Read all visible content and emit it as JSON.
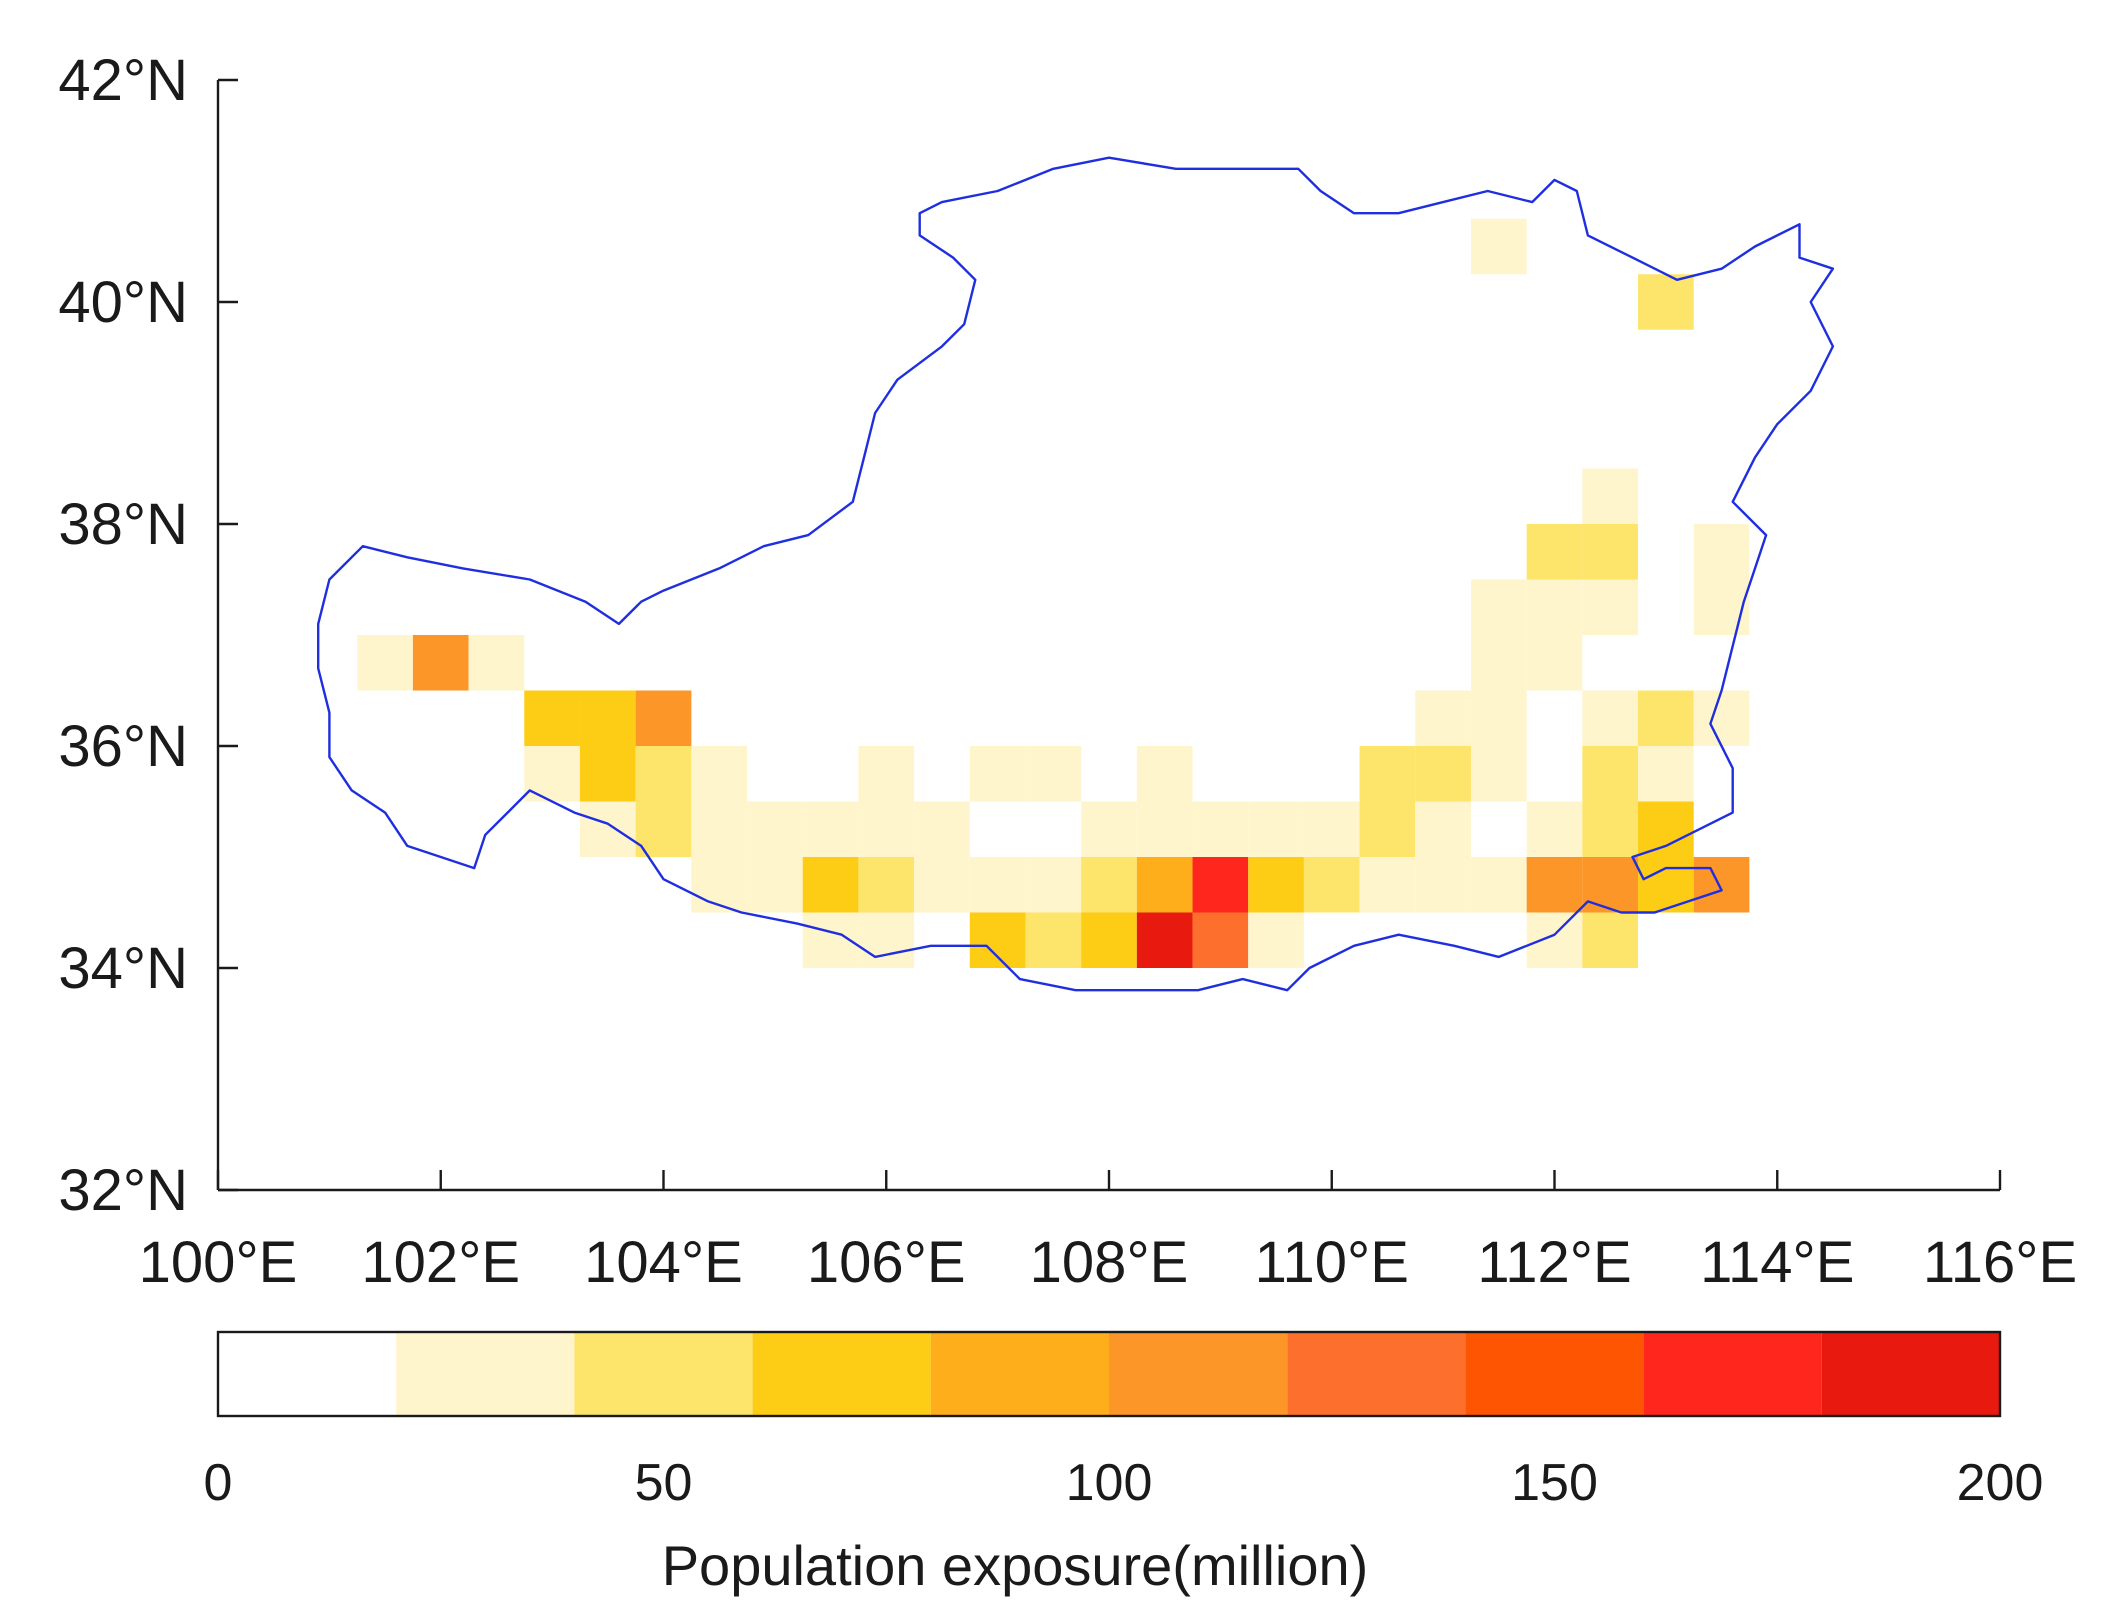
{
  "map": {
    "lon_range": [
      100,
      116
    ],
    "lat_range": [
      32,
      42
    ],
    "x_ticks": [
      {
        "lon": 100,
        "label": "100°E"
      },
      {
        "lon": 102,
        "label": "102°E"
      },
      {
        "lon": 104,
        "label": "104°E"
      },
      {
        "lon": 106,
        "label": "106°E"
      },
      {
        "lon": 108,
        "label": "108°E"
      },
      {
        "lon": 110,
        "label": "110°E"
      },
      {
        "lon": 112,
        "label": "112°E"
      },
      {
        "lon": 114,
        "label": "114°E"
      },
      {
        "lon": 116,
        "label": "116°E"
      }
    ],
    "y_ticks": [
      {
        "lat": 32,
        "label": "32°N"
      },
      {
        "lat": 34,
        "label": "34°N"
      },
      {
        "lat": 36,
        "label": "36°N"
      },
      {
        "lat": 38,
        "label": "38°N"
      },
      {
        "lat": 40,
        "label": "40°N"
      },
      {
        "lat": 42,
        "label": "42°N"
      }
    ],
    "boundary_color": "#1f2fe0",
    "cell_size_deg": 0.5,
    "boundary": [
      [
        102.2,
        37.6
      ],
      [
        102.8,
        37.5
      ],
      [
        103.3,
        37.3
      ],
      [
        103.6,
        37.1
      ],
      [
        103.8,
        37.3
      ],
      [
        104.0,
        37.4
      ],
      [
        104.5,
        37.6
      ],
      [
        104.9,
        37.8
      ],
      [
        105.3,
        37.9
      ],
      [
        105.7,
        38.2
      ],
      [
        105.8,
        38.6
      ],
      [
        105.9,
        39.0
      ],
      [
        106.1,
        39.3
      ],
      [
        106.5,
        39.6
      ],
      [
        106.7,
        39.8
      ],
      [
        106.8,
        40.2
      ],
      [
        106.6,
        40.4
      ],
      [
        106.3,
        40.6
      ],
      [
        106.3,
        40.8
      ],
      [
        106.5,
        40.9
      ],
      [
        107.0,
        41.0
      ],
      [
        107.5,
        41.2
      ],
      [
        108.0,
        41.3
      ],
      [
        108.6,
        41.2
      ],
      [
        109.3,
        41.2
      ],
      [
        109.7,
        41.2
      ],
      [
        109.9,
        41.0
      ],
      [
        110.2,
        40.8
      ],
      [
        110.6,
        40.8
      ],
      [
        111.0,
        40.9
      ],
      [
        111.4,
        41.0
      ],
      [
        111.8,
        40.9
      ],
      [
        112.0,
        41.1
      ],
      [
        112.2,
        41.0
      ],
      [
        112.3,
        40.6
      ],
      [
        112.7,
        40.4
      ],
      [
        113.1,
        40.2
      ],
      [
        113.5,
        40.3
      ],
      [
        113.8,
        40.5
      ],
      [
        114.2,
        40.7
      ],
      [
        114.2,
        40.4
      ],
      [
        114.5,
        40.3
      ],
      [
        114.3,
        40.0
      ],
      [
        114.5,
        39.6
      ],
      [
        114.3,
        39.2
      ],
      [
        114.0,
        38.9
      ],
      [
        113.8,
        38.6
      ],
      [
        113.6,
        38.2
      ],
      [
        113.9,
        37.9
      ],
      [
        113.8,
        37.6
      ],
      [
        113.7,
        37.3
      ],
      [
        113.6,
        36.9
      ],
      [
        113.5,
        36.5
      ],
      [
        113.4,
        36.2
      ],
      [
        113.6,
        35.8
      ],
      [
        113.6,
        35.4
      ],
      [
        113.0,
        35.1
      ],
      [
        112.7,
        35.0
      ],
      [
        112.8,
        34.8
      ],
      [
        113.0,
        34.9
      ],
      [
        113.4,
        34.9
      ],
      [
        113.5,
        34.7
      ],
      [
        113.2,
        34.6
      ],
      [
        112.9,
        34.5
      ],
      [
        112.6,
        34.5
      ],
      [
        112.3,
        34.6
      ],
      [
        112.0,
        34.3
      ],
      [
        111.5,
        34.1
      ],
      [
        111.1,
        34.2
      ],
      [
        110.6,
        34.3
      ],
      [
        110.2,
        34.2
      ],
      [
        109.8,
        34.0
      ],
      [
        109.6,
        33.8
      ],
      [
        109.2,
        33.9
      ],
      [
        108.8,
        33.8
      ],
      [
        108.3,
        33.8
      ],
      [
        107.7,
        33.8
      ],
      [
        107.2,
        33.9
      ],
      [
        106.9,
        34.2
      ],
      [
        106.4,
        34.2
      ],
      [
        105.9,
        34.1
      ],
      [
        105.6,
        34.3
      ],
      [
        105.2,
        34.4
      ],
      [
        104.7,
        34.5
      ],
      [
        104.4,
        34.6
      ],
      [
        104.0,
        34.8
      ],
      [
        103.8,
        35.1
      ],
      [
        103.5,
        35.3
      ],
      [
        103.2,
        35.4
      ],
      [
        102.8,
        35.6
      ],
      [
        102.6,
        35.4
      ],
      [
        102.4,
        35.2
      ],
      [
        102.3,
        34.9
      ],
      [
        102.0,
        35.0
      ],
      [
        101.7,
        35.1
      ],
      [
        101.5,
        35.4
      ],
      [
        101.2,
        35.6
      ],
      [
        101.0,
        35.9
      ],
      [
        101.0,
        36.3
      ],
      [
        100.9,
        36.7
      ],
      [
        100.9,
        37.1
      ],
      [
        101.0,
        37.5
      ],
      [
        101.3,
        37.8
      ],
      [
        101.7,
        37.7
      ],
      [
        102.2,
        37.6
      ]
    ],
    "grid_cells": [
      [
        111.5,
        40.5,
        30
      ],
      [
        113.0,
        40.0,
        50
      ],
      [
        101.5,
        36.75,
        30
      ],
      [
        102.0,
        36.75,
        110
      ],
      [
        102.5,
        36.75,
        30
      ],
      [
        103.0,
        36.25,
        70
      ],
      [
        103.5,
        36.25,
        70
      ],
      [
        104.0,
        36.25,
        110
      ],
      [
        103.0,
        35.75,
        30
      ],
      [
        103.5,
        35.75,
        70
      ],
      [
        104.0,
        35.75,
        50
      ],
      [
        104.5,
        35.75,
        30
      ],
      [
        106.0,
        35.75,
        30
      ],
      [
        107.0,
        35.75,
        30
      ],
      [
        107.5,
        35.75,
        30
      ],
      [
        103.5,
        35.25,
        30
      ],
      [
        104.0,
        35.25,
        50
      ],
      [
        104.5,
        35.25,
        30
      ],
      [
        105.0,
        35.25,
        30
      ],
      [
        105.5,
        35.25,
        30
      ],
      [
        106.0,
        35.25,
        30
      ],
      [
        106.5,
        35.25,
        30
      ],
      [
        108.0,
        35.25,
        30
      ],
      [
        108.5,
        35.25,
        30
      ],
      [
        109.0,
        35.25,
        30
      ],
      [
        109.5,
        35.25,
        30
      ],
      [
        110.0,
        35.25,
        30
      ],
      [
        110.5,
        35.25,
        50
      ],
      [
        111.0,
        35.25,
        30
      ],
      [
        112.0,
        35.25,
        30
      ],
      [
        112.5,
        35.25,
        50
      ],
      [
        113.0,
        35.25,
        70
      ],
      [
        104.5,
        34.75,
        30
      ],
      [
        105.0,
        34.75,
        30
      ],
      [
        105.5,
        34.75,
        70
      ],
      [
        106.0,
        34.75,
        50
      ],
      [
        106.5,
        34.75,
        30
      ],
      [
        107.0,
        34.75,
        30
      ],
      [
        107.5,
        34.75,
        30
      ],
      [
        108.0,
        34.75,
        50
      ],
      [
        108.5,
        34.75,
        90
      ],
      [
        109.0,
        34.75,
        170
      ],
      [
        109.5,
        34.75,
        70
      ],
      [
        110.0,
        34.75,
        50
      ],
      [
        110.5,
        34.75,
        30
      ],
      [
        111.0,
        34.75,
        30
      ],
      [
        111.5,
        34.75,
        30
      ],
      [
        112.0,
        34.75,
        110
      ],
      [
        112.5,
        34.75,
        110
      ],
      [
        113.0,
        34.75,
        70
      ],
      [
        113.5,
        34.75,
        110
      ],
      [
        105.5,
        34.25,
        30
      ],
      [
        106.0,
        34.25,
        30
      ],
      [
        107.0,
        34.25,
        70
      ],
      [
        107.5,
        34.25,
        50
      ],
      [
        108.0,
        34.25,
        70
      ],
      [
        108.5,
        34.25,
        190
      ],
      [
        109.0,
        34.25,
        130
      ],
      [
        109.5,
        34.25,
        30
      ],
      [
        112.0,
        34.25,
        30
      ],
      [
        112.5,
        34.25,
        50
      ],
      [
        107.5,
        35.75,
        30
      ],
      [
        108.5,
        35.75,
        30
      ],
      [
        110.5,
        35.75,
        50
      ],
      [
        111.0,
        35.75,
        50
      ],
      [
        111.5,
        35.75,
        30
      ],
      [
        112.5,
        35.75,
        50
      ],
      [
        113.0,
        35.75,
        30
      ],
      [
        111.0,
        36.25,
        30
      ],
      [
        111.5,
        36.25,
        30
      ],
      [
        112.5,
        36.25,
        30
      ],
      [
        113.0,
        36.25,
        50
      ],
      [
        113.5,
        36.25,
        30
      ],
      [
        111.5,
        36.75,
        30
      ],
      [
        112.0,
        36.75,
        30
      ],
      [
        111.5,
        37.25,
        30
      ],
      [
        112.0,
        37.25,
        30
      ],
      [
        112.5,
        37.25,
        30
      ],
      [
        112.0,
        37.75,
        50
      ],
      [
        112.5,
        37.75,
        50
      ],
      [
        113.5,
        37.75,
        30
      ],
      [
        113.5,
        37.25,
        30
      ],
      [
        112.5,
        38.25,
        30
      ]
    ]
  },
  "colorbar": {
    "min": 0,
    "max": 200,
    "bins": [
      {
        "from": 0,
        "to": 20,
        "color": "#ffffff"
      },
      {
        "from": 20,
        "to": 40,
        "color": "#fff5cc"
      },
      {
        "from": 40,
        "to": 60,
        "color": "#fde46b"
      },
      {
        "from": 60,
        "to": 80,
        "color": "#fdcc15"
      },
      {
        "from": 80,
        "to": 100,
        "color": "#fdae1a"
      },
      {
        "from": 100,
        "to": 120,
        "color": "#fc9628"
      },
      {
        "from": 120,
        "to": 140,
        "color": "#fd6f2c"
      },
      {
        "from": 140,
        "to": 160,
        "color": "#fd5502"
      },
      {
        "from": 160,
        "to": 180,
        "color": "#fe261d"
      },
      {
        "from": 180,
        "to": 200,
        "color": "#e8190f"
      }
    ],
    "ticks": [
      {
        "value": 0,
        "label": "0"
      },
      {
        "value": 50,
        "label": "50"
      },
      {
        "value": 100,
        "label": "100"
      },
      {
        "value": 150,
        "label": "150"
      },
      {
        "value": 200,
        "label": "200"
      }
    ],
    "title": "Population exposure(million)"
  }
}
